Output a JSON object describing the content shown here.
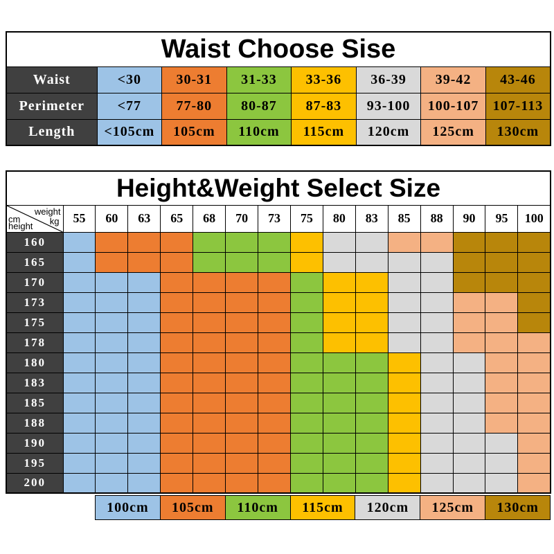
{
  "colors": {
    "blue": "#9DC3E6",
    "orange": "#ED7D31",
    "green": "#8CC63F",
    "yellow": "#FDC000",
    "gray": "#D9D9D9",
    "peach": "#F4B183",
    "gold": "#B8860B",
    "header_dark": "#404040"
  },
  "chart_data": [
    {
      "type": "table",
      "title": "Waist Choose Sise",
      "color_order": [
        "blue",
        "orange",
        "green",
        "yellow",
        "gray",
        "peach",
        "gold"
      ],
      "rows": [
        {
          "label": "Waist",
          "values": [
            "<30",
            "30-31",
            "31-33",
            "33-36",
            "36-39",
            "39-42",
            "43-46"
          ]
        },
        {
          "label": "Perimeter",
          "values": [
            "<77",
            "77-80",
            "80-87",
            "87-83",
            "93-100",
            "100-107",
            "107-113"
          ]
        },
        {
          "label": "Length",
          "values": [
            "<105cm",
            "105cm",
            "110cm",
            "115cm",
            "120cm",
            "125cm",
            "130cm"
          ]
        }
      ]
    },
    {
      "type": "table",
      "title": "Height&Weight Select Size",
      "corner": {
        "unit_col": "cm",
        "col_label": "weight",
        "row_label": "height",
        "unit_row": "kg"
      },
      "weights": [
        "55",
        "60",
        "63",
        "65",
        "68",
        "70",
        "73",
        "75",
        "80",
        "83",
        "85",
        "88",
        "90",
        "95",
        "100"
      ],
      "rows": [
        {
          "height": "160",
          "cells": [
            "blue",
            "orange",
            "orange",
            "orange",
            "green",
            "green",
            "green",
            "yellow",
            "gray",
            "gray",
            "peach",
            "peach",
            "gold",
            "gold",
            "gold"
          ]
        },
        {
          "height": "165",
          "cells": [
            "blue",
            "orange",
            "orange",
            "orange",
            "green",
            "green",
            "green",
            "yellow",
            "gray",
            "gray",
            "gray",
            "gray",
            "gold",
            "gold",
            "gold"
          ]
        },
        {
          "height": "170",
          "cells": [
            "blue",
            "blue",
            "blue",
            "orange",
            "orange",
            "orange",
            "orange",
            "green",
            "yellow",
            "yellow",
            "gray",
            "gray",
            "gold",
            "gold",
            "gold"
          ]
        },
        {
          "height": "173",
          "cells": [
            "blue",
            "blue",
            "blue",
            "orange",
            "orange",
            "orange",
            "orange",
            "green",
            "yellow",
            "yellow",
            "gray",
            "gray",
            "peach",
            "peach",
            "gold"
          ]
        },
        {
          "height": "175",
          "cells": [
            "blue",
            "blue",
            "blue",
            "orange",
            "orange",
            "orange",
            "orange",
            "green",
            "yellow",
            "yellow",
            "gray",
            "gray",
            "peach",
            "peach",
            "gold"
          ]
        },
        {
          "height": "178",
          "cells": [
            "blue",
            "blue",
            "blue",
            "orange",
            "orange",
            "orange",
            "orange",
            "green",
            "yellow",
            "yellow",
            "gray",
            "gray",
            "peach",
            "peach",
            "peach"
          ]
        },
        {
          "height": "180",
          "cells": [
            "blue",
            "blue",
            "blue",
            "orange",
            "orange",
            "orange",
            "orange",
            "green",
            "green",
            "green",
            "yellow",
            "gray",
            "gray",
            "peach",
            "peach"
          ]
        },
        {
          "height": "183",
          "cells": [
            "blue",
            "blue",
            "blue",
            "orange",
            "orange",
            "orange",
            "orange",
            "green",
            "green",
            "green",
            "yellow",
            "gray",
            "gray",
            "peach",
            "peach"
          ]
        },
        {
          "height": "185",
          "cells": [
            "blue",
            "blue",
            "blue",
            "orange",
            "orange",
            "orange",
            "orange",
            "green",
            "green",
            "green",
            "yellow",
            "gray",
            "gray",
            "peach",
            "peach"
          ]
        },
        {
          "height": "188",
          "cells": [
            "blue",
            "blue",
            "blue",
            "orange",
            "orange",
            "orange",
            "orange",
            "green",
            "green",
            "green",
            "yellow",
            "gray",
            "gray",
            "peach",
            "peach"
          ]
        },
        {
          "height": "190",
          "cells": [
            "blue",
            "blue",
            "blue",
            "orange",
            "orange",
            "orange",
            "orange",
            "green",
            "green",
            "green",
            "yellow",
            "gray",
            "gray",
            "gray",
            "peach"
          ]
        },
        {
          "height": "195",
          "cells": [
            "blue",
            "blue",
            "blue",
            "orange",
            "orange",
            "orange",
            "orange",
            "green",
            "green",
            "green",
            "yellow",
            "gray",
            "gray",
            "gray",
            "peach"
          ]
        },
        {
          "height": "200",
          "cells": [
            "blue",
            "blue",
            "blue",
            "orange",
            "orange",
            "orange",
            "orange",
            "green",
            "green",
            "green",
            "yellow",
            "gray",
            "gray",
            "gray",
            "peach"
          ]
        }
      ],
      "legend": [
        {
          "label": "100cm",
          "color": "blue"
        },
        {
          "label": "105cm",
          "color": "orange"
        },
        {
          "label": "110cm",
          "color": "green"
        },
        {
          "label": "115cm",
          "color": "yellow"
        },
        {
          "label": "120cm",
          "color": "gray"
        },
        {
          "label": "125cm",
          "color": "peach"
        },
        {
          "label": "130cm",
          "color": "gold"
        }
      ]
    }
  ]
}
